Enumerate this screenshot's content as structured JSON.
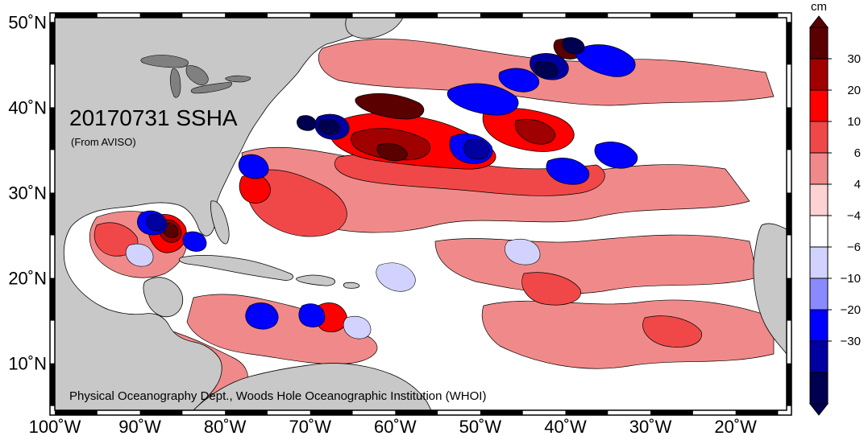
{
  "map": {
    "title": "20170731 SSHA",
    "subtitle": "(From AVISO)",
    "credit": "Physical Oceanography Dept., Woods Hole Oceanographic Institution (WHOI)",
    "lon_ticks": [
      "100˚W",
      "90˚W",
      "80˚W",
      "70˚W",
      "60˚W",
      "50˚W",
      "40˚W",
      "30˚W",
      "20˚W"
    ],
    "lat_ticks": [
      "50˚N",
      "40˚N",
      "30˚N",
      "20˚N",
      "10˚N"
    ],
    "lon_range": [
      -100,
      -14
    ],
    "lat_range": [
      4.5,
      50.5
    ],
    "colors": {
      "land": "#c8c8c8",
      "neutral": "#ffffff"
    }
  },
  "colorbar": {
    "unit": "cm",
    "labels": [
      "30",
      "20",
      "10",
      "6",
      "4",
      "−4",
      "−6",
      "−10",
      "−20",
      "−30"
    ],
    "colors": [
      "#5a0000",
      "#a00000",
      "#ff0000",
      "#f04848",
      "#f08a8a",
      "#fcd2d2",
      "#ffffff",
      "#d2d2ff",
      "#8a8aff",
      "#0000ff",
      "#0000a0",
      "#000050"
    ]
  }
}
